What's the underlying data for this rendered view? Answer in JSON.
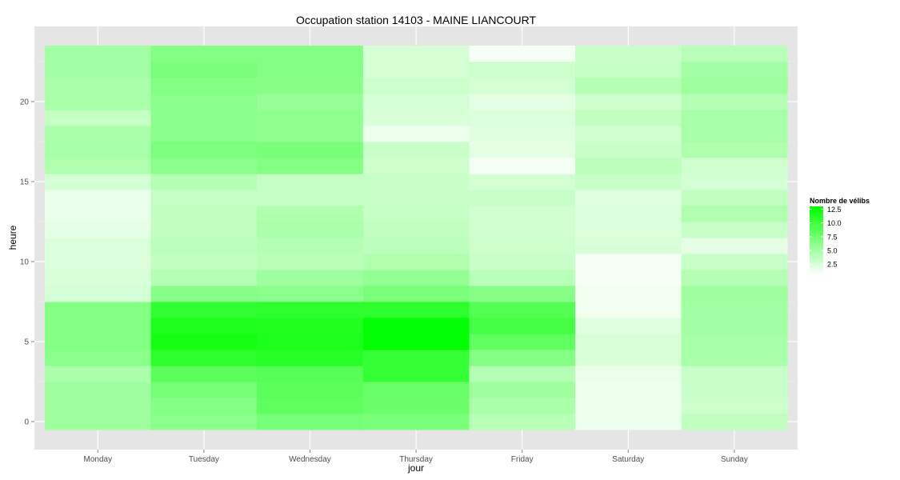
{
  "chart_data": {
    "type": "heatmap",
    "title": "Occupation station 14103 - MAINE LIANCOURT",
    "xlabel": "jour",
    "ylabel": "heure",
    "categories": [
      "Monday",
      "Tuesday",
      "Wednesday",
      "Thursday",
      "Friday",
      "Saturday",
      "Sunday"
    ],
    "y": [
      0,
      1,
      2,
      3,
      4,
      5,
      6,
      7,
      8,
      9,
      10,
      11,
      12,
      13,
      14,
      15,
      16,
      17,
      18,
      19,
      20,
      21,
      22,
      23
    ],
    "y_ticks": [
      0,
      5,
      10,
      15,
      20
    ],
    "ylim": [
      -0.5,
      23.5
    ],
    "grid": true,
    "values": [
      [
        5.2,
        5.2,
        5.2,
        4.6,
        6.2,
        6.6,
        6.6,
        6.6,
        2.6,
        2.4,
        2.2,
        2.2,
        1.8,
        1.6,
        1.6,
        2.6,
        4.4,
        4.8,
        4.6,
        3.4,
        4.8,
        4.6,
        5.0,
        5.0
      ],
      [
        6.2,
        6.6,
        7.2,
        8.6,
        10.8,
        12.0,
        11.6,
        10.6,
        6.4,
        4.2,
        3.6,
        3.8,
        3.6,
        3.6,
        3.4,
        4.2,
        6.2,
        6.8,
        6.2,
        6.2,
        6.2,
        6.6,
        7.0,
        6.6
      ],
      [
        7.2,
        8.4,
        8.6,
        8.8,
        11.2,
        11.6,
        11.4,
        10.8,
        6.2,
        5.2,
        4.0,
        4.2,
        4.6,
        4.4,
        3.4,
        3.4,
        6.6,
        7.0,
        6.0,
        6.0,
        5.6,
        6.4,
        6.6,
        6.6
      ],
      [
        7.0,
        7.8,
        8.0,
        10.4,
        10.4,
        12.8,
        12.8,
        10.8,
        7.0,
        5.8,
        4.4,
        3.8,
        3.6,
        3.4,
        3.2,
        3.2,
        3.0,
        3.2,
        1.4,
        2.4,
        2.6,
        3.0,
        2.6,
        2.6
      ],
      [
        4.0,
        4.6,
        5.2,
        4.2,
        6.6,
        8.4,
        9.6,
        9.0,
        6.4,
        4.0,
        3.2,
        3.0,
        2.8,
        2.8,
        3.2,
        2.6,
        1.0,
        1.8,
        2.0,
        2.2,
        1.8,
        2.6,
        3.0,
        1.0
      ],
      [
        1.4,
        1.4,
        1.4,
        1.6,
        2.4,
        2.4,
        2.0,
        1.2,
        1.2,
        1.0,
        1.0,
        2.4,
        2.2,
        2.2,
        2.0,
        3.2,
        3.8,
        3.2,
        2.8,
        3.6,
        3.0,
        4.2,
        3.4,
        3.2
      ],
      [
        3.6,
        3.0,
        3.2,
        3.2,
        4.8,
        4.8,
        5.0,
        5.0,
        5.2,
        4.2,
        3.2,
        1.8,
        3.2,
        4.4,
        3.6,
        2.6,
        2.8,
        4.4,
        4.8,
        4.8,
        4.2,
        5.2,
        5.0,
        4.0
      ]
    ],
    "values_orientation": "values[day][hour]",
    "zlim": [
      0.5,
      13.0
    ],
    "color_low": "#ffffff",
    "color_high": "#00ff00",
    "legend": {
      "title": "Nombre de vélibs",
      "breaks": [
        2.5,
        5.0,
        7.5,
        10.0,
        12.5
      ],
      "labels": [
        "2.5",
        "5.0",
        "7.5",
        "10.0",
        "12.5"
      ],
      "placement": "right"
    },
    "panel_background": "#e5e5e5",
    "grid_color": "#ffffff"
  }
}
